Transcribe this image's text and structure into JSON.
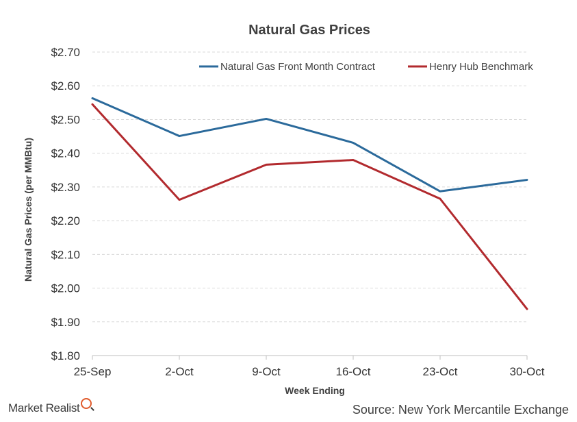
{
  "chart_data": {
    "type": "line",
    "title": "Natural Gas Prices",
    "xlabel": "Week Ending",
    "ylabel": "Natural Gas Prices (per MMBtu)",
    "categories": [
      "25-Sep",
      "2-Oct",
      "9-Oct",
      "16-Oct",
      "23-Oct",
      "30-Oct"
    ],
    "ylim": [
      1.8,
      2.7
    ],
    "yticks": [
      1.8,
      1.9,
      2.0,
      2.1,
      2.2,
      2.3,
      2.4,
      2.5,
      2.6,
      2.7
    ],
    "ytick_labels": [
      "$1.80",
      "$1.90",
      "$2.00",
      "$2.10",
      "$2.20",
      "$2.30",
      "$2.40",
      "$2.50",
      "$2.60",
      "$2.70"
    ],
    "grid": true,
    "legend_position": "top-right",
    "series": [
      {
        "name": "Natural Gas Front Month Contract",
        "color": "#2b6a9b",
        "values": [
          2.563,
          2.451,
          2.502,
          2.431,
          2.287,
          2.321
        ]
      },
      {
        "name": "Henry Hub Benchmark",
        "color": "#b22a2e",
        "values": [
          2.545,
          2.262,
          2.366,
          2.38,
          2.265,
          1.938
        ]
      }
    ]
  },
  "footer": {
    "brand": "Market Realist",
    "source": "Source: New York Mercantile Exchange"
  }
}
